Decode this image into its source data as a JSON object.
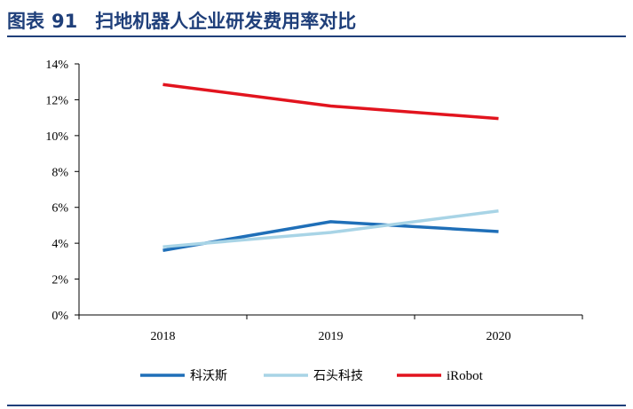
{
  "header": {
    "figure_label": "图表",
    "figure_number": "91",
    "title": "扫地机器人企业研发费用率对比"
  },
  "chart_data": {
    "type": "line",
    "categories": [
      "2018",
      "2019",
      "2020"
    ],
    "series": [
      {
        "name": "科沃斯",
        "color": "#1f6fb8",
        "values": [
          3.6,
          5.2,
          4.65
        ]
      },
      {
        "name": "石头科技",
        "color": "#a8d4e6",
        "values": [
          3.8,
          4.6,
          5.8
        ]
      },
      {
        "name": "iRobot",
        "color": "#e2141e",
        "values": [
          12.85,
          11.65,
          10.95
        ]
      }
    ],
    "ylim": [
      0,
      14
    ],
    "yticks": [
      0,
      2,
      4,
      6,
      8,
      10,
      12,
      14
    ],
    "ytick_labels": [
      "0%",
      "2%",
      "4%",
      "6%",
      "8%",
      "10%",
      "12%",
      "14%"
    ],
    "y_unit": "%",
    "grid": false,
    "legend_position": "bottom-center",
    "xlabel": "",
    "ylabel": ""
  }
}
